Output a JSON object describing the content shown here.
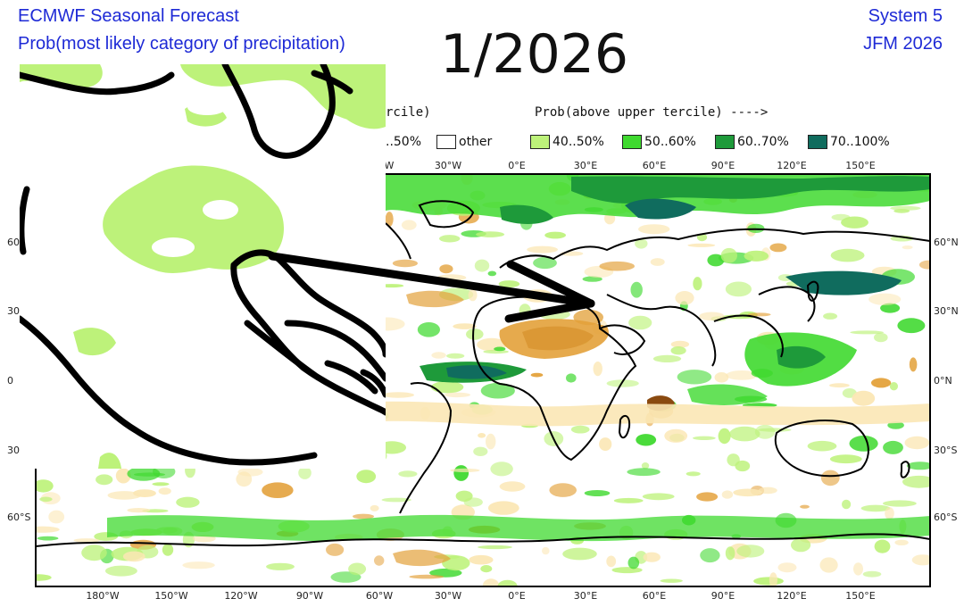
{
  "header": {
    "title_line1": "ECMWF Seasonal Forecast",
    "title_line2": "Prob(most likely category of precipitation)",
    "system": "System 5",
    "period": "JFM 2026"
  },
  "overlay": {
    "date_text": "1/2026",
    "arrow_color": "#000000"
  },
  "legend": {
    "lower_label_fragment": "rcile)",
    "upper_label": "Prob(above upper tercile) ---->",
    "items": [
      {
        "label": "..50%",
        "color": "#ffffff",
        "partial": true
      },
      {
        "label": "other",
        "color": "#ffffff"
      },
      {
        "label": "40..50%",
        "color": "#bdf27a"
      },
      {
        "label": "50..60%",
        "color": "#3fd92f"
      },
      {
        "label": "60..70%",
        "color": "#1e9a3a"
      },
      {
        "label": "70..100%",
        "color": "#106c5e"
      }
    ]
  },
  "map": {
    "lon_ticks": [
      "180°W",
      "150°W",
      "120°W",
      "90°W",
      "60°W",
      "30°W",
      "0°E",
      "30°E",
      "60°E",
      "90°E",
      "120°E",
      "150°E"
    ],
    "top_lon_ticks_visible": [
      "W",
      "30°W",
      "0°E",
      "30°E",
      "60°E",
      "90°E",
      "120°E",
      "150°E"
    ],
    "lat_ticks_right": [
      "60°N",
      "30°N",
      "0°N",
      "30°S",
      "60°S"
    ],
    "lat_ticks_left": [
      "60",
      "30",
      "0",
      "30",
      "60°S"
    ],
    "below_colors": [
      "#fbe7b5",
      "#e3a13a",
      "#8a4a10"
    ],
    "above_colors": [
      "#bdf27a",
      "#3fd92f",
      "#1e9a3a",
      "#106c5e"
    ]
  }
}
